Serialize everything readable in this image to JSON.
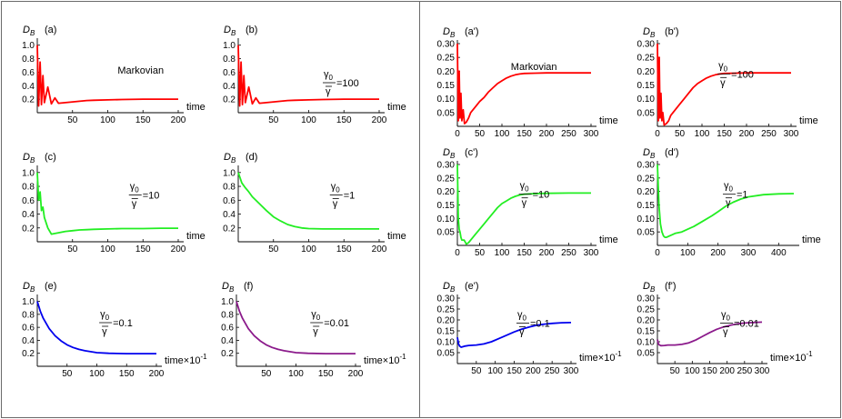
{
  "figure": {
    "frame_color": "#6b6b6b",
    "ylabel_main": "D",
    "ylabel_sub": "B",
    "frac_num_main": "γ",
    "frac_num_sub": "0",
    "frac_den": "γ"
  },
  "chart_data": [
    {
      "id": "a",
      "type": "line",
      "panel_label": "(a)",
      "xlabel": "time",
      "xlim": [
        0,
        200
      ],
      "ylim": [
        0,
        1.05
      ],
      "xticks": [
        50,
        100,
        150,
        200
      ],
      "yticks": [
        0.2,
        0.4,
        0.6,
        0.8,
        1.0
      ],
      "ytick_labels": [
        "0.2",
        "0.4",
        "0.6",
        "0.8",
        "1.0"
      ],
      "color": "#ff0000",
      "annotation": "Markovian",
      "series": [
        {
          "name": "D_B",
          "x": [
            0,
            2,
            4,
            6,
            8,
            10,
            15,
            20,
            25,
            30,
            40,
            50,
            60,
            70,
            80,
            100,
            120,
            150,
            175,
            200
          ],
          "y": [
            1.0,
            0.1,
            0.75,
            0.12,
            0.55,
            0.15,
            0.38,
            0.13,
            0.22,
            0.14,
            0.15,
            0.16,
            0.17,
            0.18,
            0.185,
            0.19,
            0.195,
            0.2,
            0.2,
            0.2
          ]
        }
      ]
    },
    {
      "id": "b",
      "type": "line",
      "panel_label": "(b)",
      "xlabel": "time",
      "xlim": [
        0,
        200
      ],
      "ylim": [
        0,
        1.05
      ],
      "xticks": [
        50,
        100,
        150,
        200
      ],
      "yticks": [
        0.2,
        0.4,
        0.6,
        0.8,
        1.0
      ],
      "ytick_labels": [
        "0.2",
        "0.4",
        "0.6",
        "0.8",
        "1.0"
      ],
      "color": "#ff0000",
      "annotation_value": "100",
      "series": [
        {
          "name": "D_B",
          "x": [
            0,
            2,
            4,
            6,
            8,
            10,
            15,
            20,
            25,
            30,
            40,
            50,
            60,
            70,
            80,
            100,
            120,
            150,
            175,
            200
          ],
          "y": [
            1.0,
            0.1,
            0.75,
            0.12,
            0.55,
            0.15,
            0.38,
            0.13,
            0.22,
            0.14,
            0.15,
            0.16,
            0.17,
            0.18,
            0.185,
            0.19,
            0.195,
            0.2,
            0.2,
            0.2
          ]
        }
      ]
    },
    {
      "id": "c",
      "type": "line",
      "panel_label": "(c)",
      "xlabel": "time",
      "xlim": [
        0,
        200
      ],
      "ylim": [
        0,
        1.05
      ],
      "xticks": [
        50,
        100,
        150,
        200
      ],
      "yticks": [
        0.2,
        0.4,
        0.6,
        0.8,
        1.0
      ],
      "ytick_labels": [
        "0.2",
        "0.4",
        "0.6",
        "0.8",
        "1.0"
      ],
      "color": "#22ee22",
      "annotation_value": "10",
      "series": [
        {
          "name": "D_B",
          "x": [
            0,
            2,
            4,
            6,
            8,
            10,
            15,
            20,
            25,
            30,
            40,
            50,
            60,
            70,
            80,
            100,
            120,
            150,
            175,
            200
          ],
          "y": [
            1.0,
            0.6,
            0.72,
            0.45,
            0.5,
            0.35,
            0.2,
            0.11,
            0.12,
            0.13,
            0.15,
            0.16,
            0.17,
            0.175,
            0.18,
            0.185,
            0.19,
            0.19,
            0.195,
            0.195
          ]
        }
      ]
    },
    {
      "id": "d",
      "type": "line",
      "panel_label": "(d)",
      "xlabel": "time",
      "xlim": [
        0,
        200
      ],
      "ylim": [
        0,
        1.05
      ],
      "xticks": [
        50,
        100,
        150,
        200
      ],
      "yticks": [
        0.2,
        0.4,
        0.6,
        0.8,
        1.0
      ],
      "ytick_labels": [
        "0.2",
        "0.4",
        "0.6",
        "0.8",
        "1.0"
      ],
      "color": "#22ee22",
      "annotation_value": "1",
      "series": [
        {
          "name": "D_B",
          "x": [
            0,
            5,
            10,
            15,
            20,
            30,
            40,
            50,
            60,
            70,
            80,
            90,
            100,
            120,
            140,
            160,
            180,
            200
          ],
          "y": [
            1.0,
            0.85,
            0.78,
            0.72,
            0.65,
            0.55,
            0.45,
            0.36,
            0.3,
            0.25,
            0.22,
            0.2,
            0.19,
            0.185,
            0.185,
            0.185,
            0.185,
            0.185
          ]
        }
      ]
    },
    {
      "id": "e",
      "type": "line",
      "panel_label": "(e)",
      "xlabel": "time×10",
      "xlabel_sup": "-1",
      "xlim": [
        0,
        200
      ],
      "ylim": [
        0,
        1.05
      ],
      "xticks": [
        50,
        100,
        150,
        200
      ],
      "yticks": [
        0.2,
        0.4,
        0.6,
        0.8,
        1.0
      ],
      "ytick_labels": [
        "0.2",
        "0.4",
        "0.6",
        "0.8",
        "1.0"
      ],
      "color": "#0000ee",
      "annotation_value": "0.1",
      "series": [
        {
          "name": "D_B",
          "x": [
            0,
            5,
            10,
            20,
            30,
            40,
            50,
            60,
            70,
            80,
            100,
            120,
            150,
            175,
            200
          ],
          "y": [
            1.0,
            0.85,
            0.74,
            0.58,
            0.47,
            0.39,
            0.33,
            0.29,
            0.26,
            0.24,
            0.21,
            0.2,
            0.195,
            0.195,
            0.195
          ]
        }
      ]
    },
    {
      "id": "f",
      "type": "line",
      "panel_label": "(f)",
      "xlabel": "time×10",
      "xlabel_sup": "-1",
      "xlim": [
        0,
        200
      ],
      "ylim": [
        0,
        1.05
      ],
      "xticks": [
        50,
        100,
        150,
        200
      ],
      "yticks": [
        0.2,
        0.4,
        0.6,
        0.8,
        1.0
      ],
      "ytick_labels": [
        "0.2",
        "0.4",
        "0.6",
        "0.8",
        "1.0"
      ],
      "color": "#8b1a8b",
      "annotation_value": "0.01",
      "series": [
        {
          "name": "D_B",
          "x": [
            0,
            5,
            10,
            20,
            30,
            40,
            50,
            60,
            70,
            80,
            100,
            120,
            150,
            175,
            200
          ],
          "y": [
            1.0,
            0.85,
            0.74,
            0.58,
            0.47,
            0.39,
            0.33,
            0.29,
            0.26,
            0.24,
            0.21,
            0.2,
            0.195,
            0.195,
            0.195
          ]
        }
      ]
    },
    {
      "id": "a2",
      "type": "line",
      "panel_label": "(a')",
      "xlabel": "time",
      "xlim": [
        0,
        300
      ],
      "ylim": [
        0,
        0.3
      ],
      "xticks": [
        0,
        50,
        100,
        150,
        200,
        250,
        300
      ],
      "yticks": [
        0.05,
        0.1,
        0.15,
        0.2,
        0.25,
        0.3
      ],
      "ytick_labels": [
        "0.05",
        "0.10",
        "0.15",
        "0.20",
        "0.25",
        "0.30"
      ],
      "color": "#ff0000",
      "annotation": "Markovian",
      "series": [
        {
          "name": "D_B",
          "x": [
            0,
            2,
            4,
            6,
            8,
            10,
            13,
            16,
            20,
            25,
            30,
            40,
            50,
            60,
            70,
            80,
            90,
            100,
            110,
            120,
            130,
            140,
            150,
            175,
            200,
            250,
            300
          ],
          "y": [
            0.3,
            0.02,
            0.2,
            0.03,
            0.12,
            0.02,
            0.06,
            0.01,
            0.015,
            0.03,
            0.05,
            0.07,
            0.09,
            0.105,
            0.125,
            0.14,
            0.155,
            0.165,
            0.175,
            0.182,
            0.187,
            0.19,
            0.192,
            0.193,
            0.194,
            0.194,
            0.194
          ]
        }
      ]
    },
    {
      "id": "b2",
      "type": "line",
      "panel_label": "(b')",
      "xlabel": "time",
      "xlim": [
        0,
        300
      ],
      "ylim": [
        0,
        0.3
      ],
      "xticks": [
        0,
        50,
        100,
        150,
        200,
        250,
        300
      ],
      "yticks": [
        0.05,
        0.1,
        0.15,
        0.2,
        0.25,
        0.3
      ],
      "ytick_labels": [
        "0.05",
        "0.10",
        "0.15",
        "0.20",
        "0.25",
        "0.30"
      ],
      "color": "#ff0000",
      "annotation_value": "100",
      "series": [
        {
          "name": "D_B",
          "x": [
            0,
            2,
            4,
            6,
            8,
            10,
            12,
            15,
            20,
            25,
            30,
            40,
            50,
            60,
            70,
            80,
            90,
            100,
            110,
            120,
            130,
            140,
            150,
            175,
            200,
            250,
            300
          ],
          "y": [
            0.3,
            0.02,
            0.25,
            0.03,
            0.12,
            0.02,
            0.05,
            0.005,
            0.01,
            0.02,
            0.04,
            0.06,
            0.08,
            0.1,
            0.12,
            0.14,
            0.155,
            0.165,
            0.175,
            0.182,
            0.187,
            0.19,
            0.192,
            0.193,
            0.194,
            0.194,
            0.194
          ]
        }
      ]
    },
    {
      "id": "c2",
      "type": "line",
      "panel_label": "(c')",
      "xlabel": "time",
      "xlim": [
        0,
        300
      ],
      "ylim": [
        0,
        0.3
      ],
      "xticks": [
        0,
        50,
        100,
        150,
        200,
        250,
        300
      ],
      "yticks": [
        0.05,
        0.1,
        0.15,
        0.2,
        0.25,
        0.3
      ],
      "ytick_labels": [
        "0.05",
        "0.10",
        "0.15",
        "0.20",
        "0.25",
        "0.30"
      ],
      "color": "#22ee22",
      "annotation_value": "10",
      "series": [
        {
          "name": "D_B",
          "x": [
            0,
            2,
            4,
            6,
            8,
            10,
            15,
            20,
            25,
            30,
            40,
            50,
            60,
            70,
            80,
            90,
            100,
            110,
            120,
            130,
            140,
            150,
            175,
            200,
            250,
            300
          ],
          "y": [
            0.3,
            0.1,
            0.06,
            0.05,
            0.03,
            0.02,
            0.02,
            0.005,
            0.01,
            0.02,
            0.04,
            0.06,
            0.08,
            0.1,
            0.12,
            0.14,
            0.155,
            0.165,
            0.175,
            0.182,
            0.187,
            0.19,
            0.192,
            0.193,
            0.194,
            0.194
          ]
        }
      ]
    },
    {
      "id": "d2",
      "type": "line",
      "panel_label": "(d')",
      "xlabel": "time",
      "xlim": [
        0,
        450
      ],
      "ylim": [
        0,
        0.3
      ],
      "xticks": [
        0,
        100,
        200,
        300,
        400
      ],
      "yticks": [
        0.05,
        0.1,
        0.15,
        0.2,
        0.25,
        0.3
      ],
      "ytick_labels": [
        "0.05",
        "0.10",
        "0.15",
        "0.20",
        "0.25",
        "0.30"
      ],
      "color": "#22ee22",
      "annotation_value": "1",
      "series": [
        {
          "name": "D_B",
          "x": [
            0,
            5,
            10,
            15,
            20,
            25,
            30,
            40,
            50,
            60,
            80,
            100,
            120,
            150,
            180,
            200,
            225,
            250,
            275,
            300,
            350,
            400,
            450
          ],
          "y": [
            0.3,
            0.15,
            0.08,
            0.05,
            0.035,
            0.03,
            0.03,
            0.035,
            0.04,
            0.045,
            0.05,
            0.06,
            0.07,
            0.09,
            0.11,
            0.125,
            0.145,
            0.16,
            0.172,
            0.18,
            0.188,
            0.191,
            0.192
          ]
        }
      ]
    },
    {
      "id": "e2",
      "type": "line",
      "panel_label": "(e')",
      "xlabel": "time×10",
      "xlabel_sup": "-1",
      "xlim": [
        0,
        300
      ],
      "ylim": [
        0,
        0.3
      ],
      "xticks": [
        50,
        100,
        150,
        200,
        250,
        300
      ],
      "yticks": [
        0.05,
        0.1,
        0.15,
        0.2,
        0.25,
        0.3
      ],
      "ytick_labels": [
        "0.05",
        "0.10",
        "0.15",
        "0.20",
        "0.25",
        "0.30"
      ],
      "color": "#0000ee",
      "annotation_value": "0.1",
      "series": [
        {
          "name": "D_B",
          "x": [
            0,
            3,
            6,
            10,
            20,
            30,
            50,
            70,
            90,
            110,
            130,
            150,
            170,
            190,
            210,
            230,
            250,
            275,
            300
          ],
          "y": [
            0.12,
            0.09,
            0.08,
            0.075,
            0.08,
            0.083,
            0.085,
            0.09,
            0.1,
            0.115,
            0.13,
            0.145,
            0.158,
            0.168,
            0.176,
            0.181,
            0.184,
            0.187,
            0.188
          ]
        }
      ]
    },
    {
      "id": "f2",
      "type": "line",
      "panel_label": "(f')",
      "xlabel": "time×10",
      "xlabel_sup": "-1",
      "xlim": [
        0,
        300
      ],
      "ylim": [
        0,
        0.3
      ],
      "xticks": [
        50,
        100,
        150,
        200,
        250,
        300
      ],
      "yticks": [
        0.05,
        0.1,
        0.15,
        0.2,
        0.25,
        0.3
      ],
      "ytick_labels": [
        "0.05",
        "0.10",
        "0.15",
        "0.20",
        "0.25",
        "0.30"
      ],
      "color": "#8b1a8b",
      "annotation_value": "0.01",
      "series": [
        {
          "name": "D_B",
          "x": [
            0,
            3,
            6,
            10,
            20,
            30,
            50,
            70,
            90,
            110,
            130,
            150,
            170,
            190,
            210,
            230,
            250,
            275,
            300
          ],
          "y": [
            0.11,
            0.09,
            0.085,
            0.082,
            0.083,
            0.085,
            0.085,
            0.088,
            0.095,
            0.108,
            0.125,
            0.142,
            0.157,
            0.168,
            0.176,
            0.182,
            0.186,
            0.188,
            0.19
          ]
        }
      ]
    }
  ]
}
